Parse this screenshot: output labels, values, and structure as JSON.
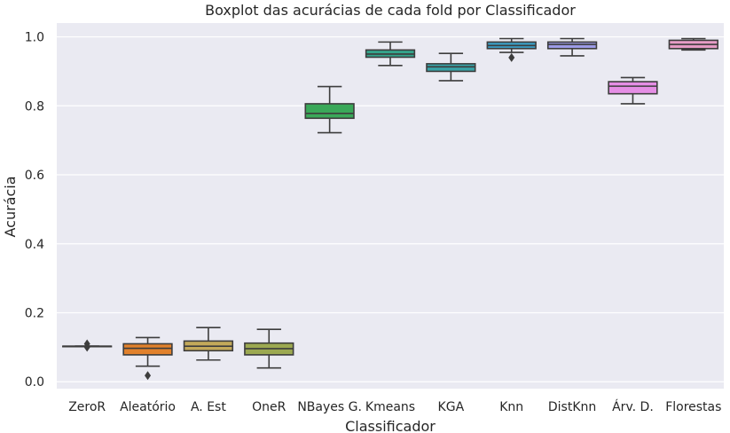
{
  "chart_data": {
    "type": "boxplot",
    "title": "Boxplot das acurácias de cada fold por Classificador",
    "xlabel": "Classificador",
    "ylabel": "Acurácia",
    "ylim": [
      -0.02,
      1.04
    ],
    "yticks": [
      "0.0",
      "0.2",
      "0.4",
      "0.6",
      "0.8",
      "1.0"
    ],
    "grid": true,
    "categories": [
      "ZeroR",
      "Aleatório",
      "A. Est",
      "OneR",
      "NBayes G.",
      "Kmeans",
      "KGA",
      "Knn",
      "DistKnn",
      "Árv. D.",
      "Florestas"
    ],
    "series": [
      {
        "category": "ZeroR",
        "color": "#3274a1",
        "whisker_low": 0.103,
        "q1": 0.103,
        "median": 0.103,
        "q3": 0.103,
        "whisker_high": 0.103,
        "outliers": [
          0.1,
          0.11
        ]
      },
      {
        "category": "Aleatório",
        "color": "#e1812c",
        "whisker_low": 0.045,
        "q1": 0.078,
        "median": 0.097,
        "q3": 0.11,
        "whisker_high": 0.128,
        "outliers": [
          0.018
        ]
      },
      {
        "category": "A. Est",
        "color": "#c3a95a",
        "whisker_low": 0.063,
        "q1": 0.09,
        "median": 0.103,
        "q3": 0.118,
        "whisker_high": 0.157,
        "outliers": []
      },
      {
        "category": "OneR",
        "color": "#9ca951",
        "whisker_low": 0.04,
        "q1": 0.078,
        "median": 0.096,
        "q3": 0.112,
        "whisker_high": 0.152,
        "outliers": []
      },
      {
        "category": "NBayes G.",
        "color": "#3aa859",
        "whisker_low": 0.722,
        "q1": 0.764,
        "median": 0.778,
        "q3": 0.806,
        "whisker_high": 0.856,
        "outliers": []
      },
      {
        "category": "Kmeans",
        "color": "#35a48b",
        "whisker_low": 0.917,
        "q1": 0.941,
        "median": 0.95,
        "q3": 0.962,
        "whisker_high": 0.985,
        "outliers": []
      },
      {
        "category": "KGA",
        "color": "#37a3a7",
        "whisker_low": 0.873,
        "q1": 0.9,
        "median": 0.913,
        "q3": 0.922,
        "whisker_high": 0.952,
        "outliers": []
      },
      {
        "category": "Knn",
        "color": "#3c9dc3",
        "whisker_low": 0.955,
        "q1": 0.966,
        "median": 0.975,
        "q3": 0.985,
        "whisker_high": 0.995,
        "outliers": [
          0.94
        ]
      },
      {
        "category": "DistKnn",
        "color": "#9d9ce8",
        "whisker_low": 0.945,
        "q1": 0.966,
        "median": 0.978,
        "q3": 0.985,
        "whisker_high": 0.995,
        "outliers": []
      },
      {
        "category": "Árv. D.",
        "color": "#e58ee5",
        "whisker_low": 0.806,
        "q1": 0.835,
        "median": 0.857,
        "q3": 0.87,
        "whisker_high": 0.882,
        "outliers": []
      },
      {
        "category": "Florestas",
        "color": "#e69cc6",
        "whisker_low": 0.962,
        "q1": 0.966,
        "median": 0.978,
        "q3": 0.99,
        "whisker_high": 0.995,
        "outliers": []
      }
    ]
  }
}
